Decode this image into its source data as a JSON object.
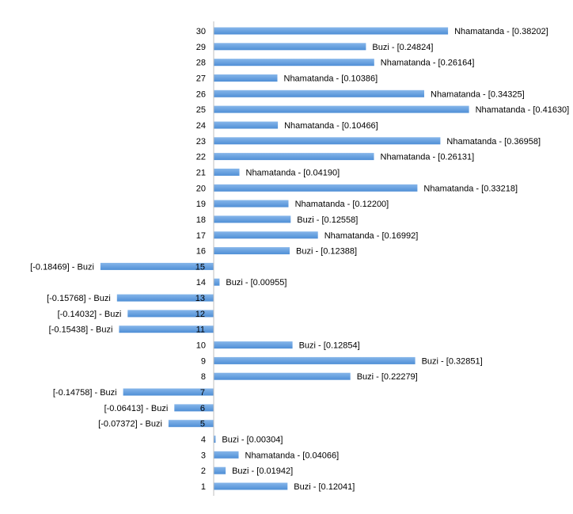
{
  "chart_data": {
    "type": "bar",
    "orientation": "horizontal",
    "colors": {
      "bar": "#4f8fd6",
      "bar_light": "#86b6ea",
      "axis": "#bfbfbf"
    },
    "xlim": [
      -0.25,
      0.46
    ],
    "grid": false,
    "legend": "none",
    "categories": [
      "1",
      "2",
      "3",
      "4",
      "5",
      "6",
      "7",
      "8",
      "9",
      "10",
      "11",
      "12",
      "13",
      "14",
      "15",
      "16",
      "17",
      "18",
      "19",
      "20",
      "21",
      "22",
      "23",
      "24",
      "25",
      "26",
      "27",
      "28",
      "29",
      "30"
    ],
    "values": [
      0.12041,
      0.01942,
      0.04066,
      0.00304,
      -0.07372,
      -0.06413,
      -0.14758,
      0.22279,
      0.32851,
      0.12854,
      -0.15438,
      -0.14032,
      -0.15768,
      0.00955,
      -0.18469,
      0.12388,
      0.16992,
      0.12558,
      0.122,
      0.33218,
      0.0419,
      0.26131,
      0.36958,
      0.10466,
      0.4163,
      0.34325,
      0.10386,
      0.26164,
      0.24824,
      0.38202
    ],
    "data_labels": [
      "Buzi - [0.12041]",
      "Buzi - [0.01942]",
      "Nhamatanda - [0.04066]",
      "Buzi - [0.00304]",
      "[-0.07372] - Buzi",
      "[-0.06413] - Buzi",
      "[-0.14758] - Buzi",
      "Buzi - [0.22279]",
      "Buzi - [0.32851]",
      "Buzi - [0.12854]",
      "[-0.15438] - Buzi",
      "[-0.14032] - Buzi",
      "[-0.15768] - Buzi",
      "Buzi - [0.00955]",
      "[-0.18469] - Buzi",
      "Buzi - [0.12388]",
      "Nhamatanda - [0.16992]",
      "Buzi - [0.12558]",
      "Nhamatanda - [0.12200]",
      "Nhamatanda - [0.33218]",
      "Nhamatanda - [0.04190]",
      "Nhamatanda - [0.26131]",
      "Nhamatanda - [0.36958]",
      "Nhamatanda - [0.10466]",
      "Nhamatanda - [0.41630]",
      "Nhamatanda - [0.34325]",
      "Nhamatanda - [0.10386]",
      "Nhamatanda - [0.26164]",
      "Buzi - [0.24824]",
      "Nhamatanda - [0.38202]"
    ]
  }
}
